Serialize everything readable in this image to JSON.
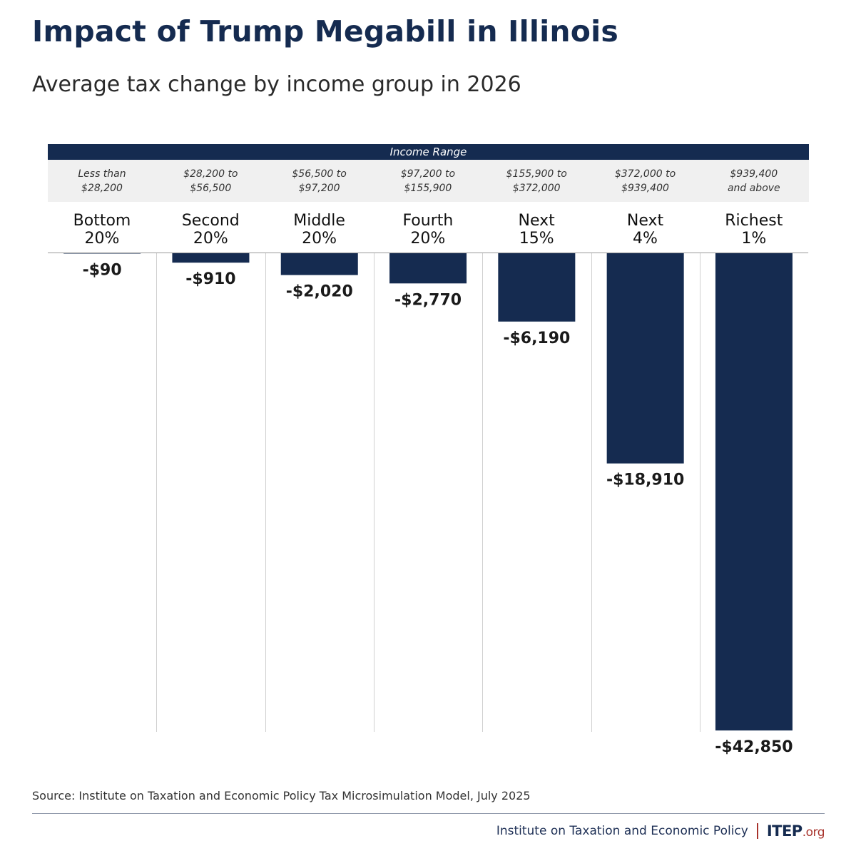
{
  "title": "Impact of Trump Megabill in Illinois",
  "subtitle": "Average tax change by income group in 2026",
  "income_range_header": "Income Range",
  "source": "Source: Institute on Taxation and Economic Policy Tax Microsimulation Model, July 2025",
  "footer": {
    "org_name": "Institute on Taxation and Economic Policy",
    "logo_text": "ITEP",
    "logo_suffix": ".org"
  },
  "colors": {
    "bar": "#152b50",
    "title": "#152b50",
    "header_band": "#152b50",
    "range_band": "#f0f0f0",
    "accent": "#a8332c"
  },
  "chart_data": {
    "type": "bar",
    "title": "Impact of Trump Megabill in Illinois",
    "subtitle": "Average tax change by income group in 2026",
    "categories": [
      "Bottom 20%",
      "Second 20%",
      "Middle 20%",
      "Fourth 20%",
      "Next 15%",
      "Next 4%",
      "Richest 1%"
    ],
    "groups": [
      {
        "line1": "Bottom",
        "line2": "20%",
        "range1": "Less than",
        "range2": "$28,200"
      },
      {
        "line1": "Second",
        "line2": "20%",
        "range1": "$28,200 to",
        "range2": "$56,500"
      },
      {
        "line1": "Middle",
        "line2": "20%",
        "range1": "$56,500 to",
        "range2": "$97,200"
      },
      {
        "line1": "Fourth",
        "line2": "20%",
        "range1": "$97,200 to",
        "range2": "$155,900"
      },
      {
        "line1": "Next",
        "line2": "15%",
        "range1": "$155,900 to",
        "range2": "$372,000"
      },
      {
        "line1": "Next",
        "line2": "4%",
        "range1": "$372,000 to",
        "range2": "$939,400"
      },
      {
        "line1": "Richest",
        "line2": "1%",
        "range1": "$939,400",
        "range2": "and above"
      }
    ],
    "values": [
      -90,
      -910,
      -2020,
      -2770,
      -6190,
      -18910,
      -42850
    ],
    "value_labels": [
      "-$90",
      "-$910",
      "-$2,020",
      "-$2,770",
      "-$6,190",
      "-$18,910",
      "-$42,850"
    ],
    "xlabel": "",
    "ylabel": "",
    "ylim": [
      -42850,
      0
    ],
    "grid": false,
    "legend": "none"
  }
}
